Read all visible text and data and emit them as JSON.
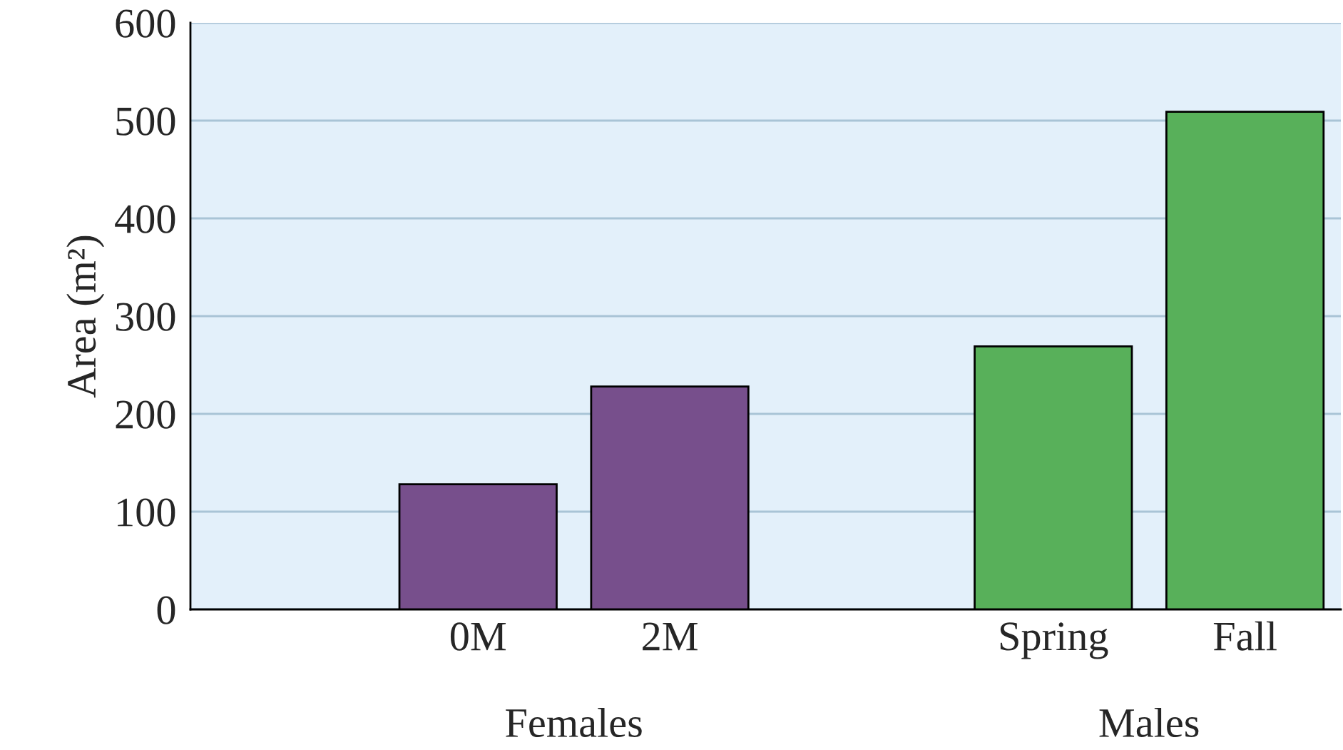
{
  "chart_data": {
    "type": "bar",
    "categories": [
      "0M",
      "2M",
      null,
      "Spring",
      "Fall"
    ],
    "values": [
      128,
      228,
      null,
      269,
      509
    ],
    "colors": [
      "#774f8c",
      "#774f8c",
      null,
      "#58b05a",
      "#58b05a"
    ],
    "ylabel": "Area (m²)",
    "ylim": [
      0,
      600
    ],
    "yticks": [
      0,
      100,
      200,
      300,
      400,
      500,
      600
    ],
    "grid": "y",
    "annotations": [
      "Females",
      "Males"
    ]
  }
}
